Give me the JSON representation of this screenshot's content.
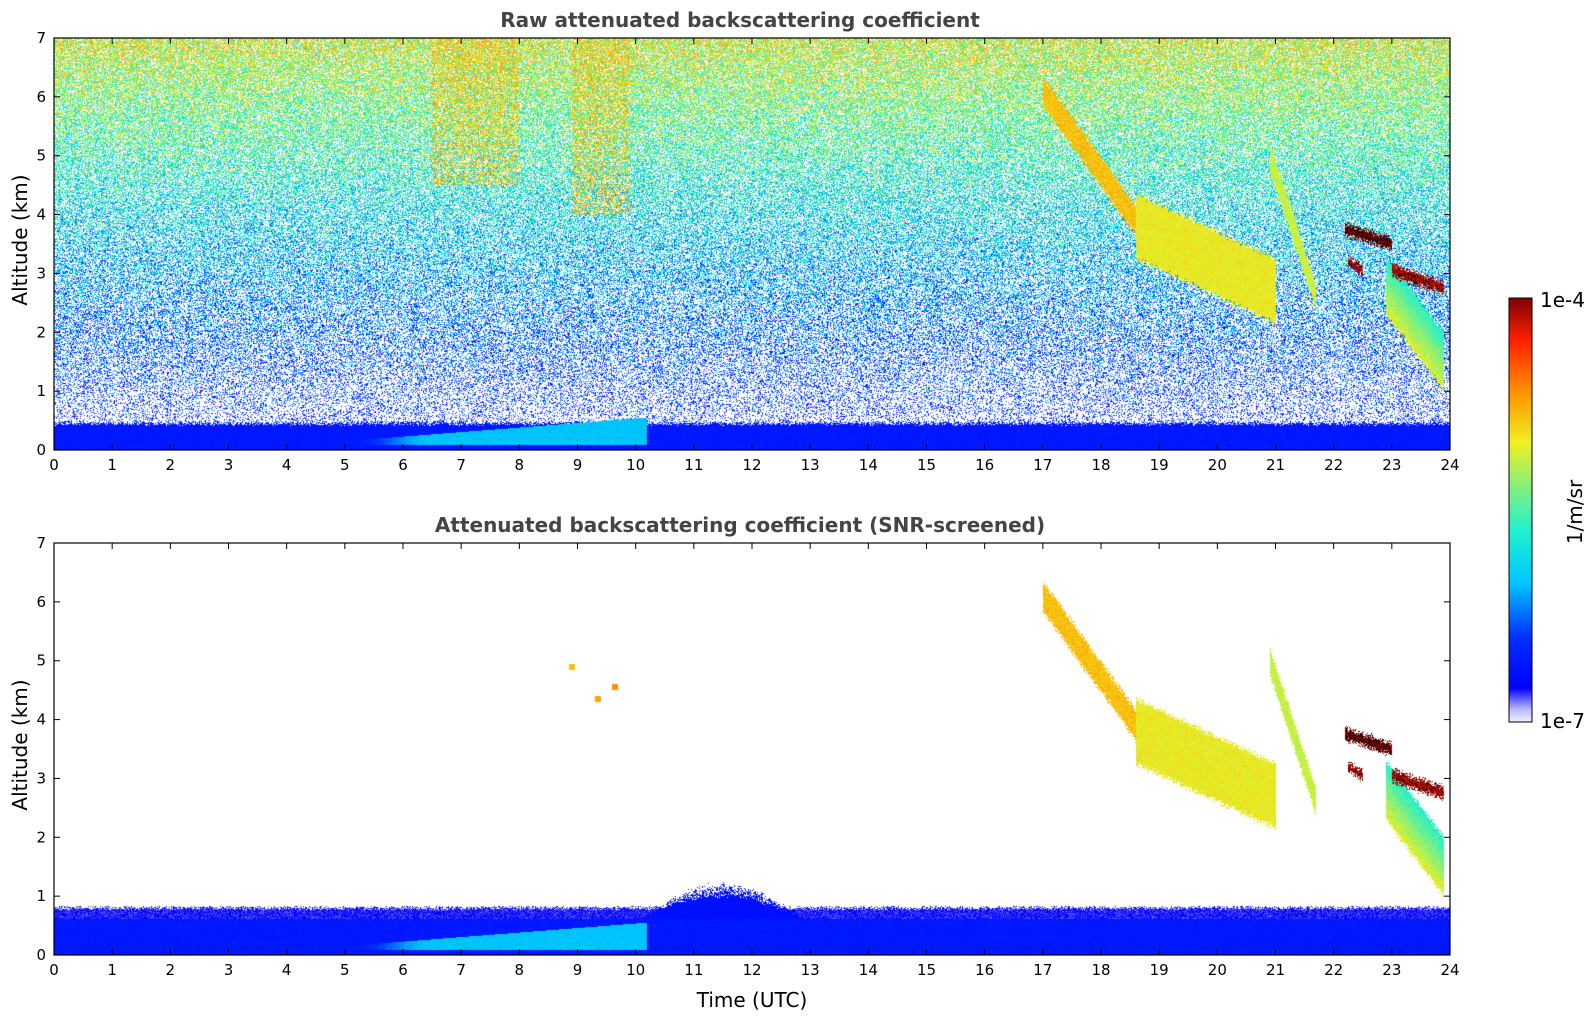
{
  "chart_data": [
    {
      "type": "heatmap",
      "title": "Raw attenuated backscattering coefficient",
      "xlabel": "",
      "ylabel": "Altitude (km)",
      "xlim": [
        0,
        24
      ],
      "ylim": [
        0,
        7
      ],
      "xticks": [
        "0",
        "1",
        "2",
        "3",
        "4",
        "5",
        "6",
        "7",
        "8",
        "9",
        "10",
        "11",
        "12",
        "13",
        "14",
        "15",
        "16",
        "17",
        "18",
        "19",
        "20",
        "21",
        "22",
        "23",
        "24"
      ],
      "yticks": [
        "0",
        "1",
        "2",
        "3",
        "4",
        "5",
        "6",
        "7"
      ],
      "color_scale": "log",
      "noise": true,
      "features": [
        {
          "kind": "boundary_layer",
          "top_km": 0.45,
          "level": 0.14
        },
        {
          "kind": "aerosol_plume",
          "t0": 5.0,
          "t1": 10.2,
          "z0": 0.15,
          "z1": 0.55,
          "level": 0.33
        },
        {
          "kind": "noise_enhancement",
          "t0": 6.5,
          "t1": 8.0,
          "z0": 4.5,
          "z1": 7.0,
          "level": 0.72
        },
        {
          "kind": "noise_enhancement",
          "t0": 8.9,
          "t1": 9.9,
          "z0": 4.0,
          "z1": 7.0,
          "level": 0.72
        },
        {
          "kind": "cloud",
          "t0": 17.0,
          "t1": 18.6,
          "z_start": 6.1,
          "z_end": 3.9,
          "thickness_km": 0.5,
          "level": 0.72
        },
        {
          "kind": "cloud",
          "t0": 18.6,
          "t1": 21.0,
          "z_start": 3.8,
          "z_end": 2.7,
          "thickness_km": 1.1,
          "level": 0.66
        },
        {
          "kind": "cloud",
          "t0": 20.9,
          "t1": 21.7,
          "z_start": 5.0,
          "z_end": 2.6,
          "thickness_km": 0.45,
          "level": 0.62
        },
        {
          "kind": "cloud",
          "t0": 22.2,
          "t1": 23.0,
          "z_start": 3.75,
          "z_end": 3.5,
          "thickness_km": 0.2,
          "level": 1.0
        },
        {
          "kind": "cloud",
          "t0": 22.25,
          "t1": 22.5,
          "z_start": 3.2,
          "z_end": 3.05,
          "thickness_km": 0.15,
          "level": 0.97
        },
        {
          "kind": "cloud",
          "t0": 23.0,
          "t1": 23.9,
          "z_start": 3.05,
          "z_end": 2.75,
          "thickness_km": 0.2,
          "level": 0.97
        },
        {
          "kind": "virga",
          "t0": 22.9,
          "t1": 23.9,
          "z_start": 2.8,
          "z_end": 1.5,
          "thickness_km": 1.0,
          "level": 0.45
        }
      ]
    },
    {
      "type": "heatmap",
      "title": "Attenuated backscattering coefficient (SNR-screened)",
      "xlabel": "Time (UTC)",
      "ylabel": "Altitude (km)",
      "xlim": [
        0,
        24
      ],
      "ylim": [
        0,
        7
      ],
      "xticks": [
        "0",
        "1",
        "2",
        "3",
        "4",
        "5",
        "6",
        "7",
        "8",
        "9",
        "10",
        "11",
        "12",
        "13",
        "14",
        "15",
        "16",
        "17",
        "18",
        "19",
        "20",
        "21",
        "22",
        "23",
        "24"
      ],
      "yticks": [
        "0",
        "1",
        "2",
        "3",
        "4",
        "5",
        "6",
        "7"
      ],
      "color_scale": "log",
      "noise": false,
      "features": [
        {
          "kind": "boundary_layer",
          "top_km": 0.8,
          "level": 0.14
        },
        {
          "kind": "aerosol_plume",
          "t0": 5.0,
          "t1": 10.2,
          "z0": 0.15,
          "z1": 0.55,
          "level": 0.33
        },
        {
          "kind": "boundary_layer_top",
          "t0": 10.0,
          "t1": 13.0,
          "z0": 0.55,
          "z1": 1.25,
          "level": 0.12
        },
        {
          "kind": "cloud",
          "t0": 17.0,
          "t1": 18.6,
          "z_start": 6.1,
          "z_end": 3.9,
          "thickness_km": 0.5,
          "level": 0.72
        },
        {
          "kind": "cloud",
          "t0": 18.6,
          "t1": 21.0,
          "z_start": 3.8,
          "z_end": 2.7,
          "thickness_km": 1.1,
          "level": 0.66
        },
        {
          "kind": "cloud",
          "t0": 20.9,
          "t1": 21.7,
          "z_start": 5.0,
          "z_end": 2.6,
          "thickness_km": 0.45,
          "level": 0.62
        },
        {
          "kind": "cloud",
          "t0": 22.2,
          "t1": 23.0,
          "z_start": 3.75,
          "z_end": 3.5,
          "thickness_km": 0.2,
          "level": 1.0
        },
        {
          "kind": "cloud",
          "t0": 22.25,
          "t1": 22.5,
          "z_start": 3.2,
          "z_end": 3.05,
          "thickness_km": 0.15,
          "level": 0.97
        },
        {
          "kind": "cloud",
          "t0": 23.0,
          "t1": 23.9,
          "z_start": 3.05,
          "z_end": 2.75,
          "thickness_km": 0.2,
          "level": 0.97
        },
        {
          "kind": "virga",
          "t0": 22.9,
          "t1": 23.9,
          "z_start": 2.8,
          "z_end": 1.5,
          "thickness_km": 1.0,
          "level": 0.45
        },
        {
          "kind": "isolated_point",
          "t": 8.9,
          "z": 4.9,
          "level": 0.72
        },
        {
          "kind": "isolated_point",
          "t": 9.35,
          "z": 4.35,
          "level": 0.75
        },
        {
          "kind": "isolated_point",
          "t": 9.65,
          "z": 4.55,
          "level": 0.78
        }
      ]
    }
  ],
  "colorbar": {
    "label": "1/m/sr",
    "min_label": "1e-7",
    "max_label": "1e-4",
    "colormap": "jet",
    "lowest_color": "#eeeeff"
  }
}
